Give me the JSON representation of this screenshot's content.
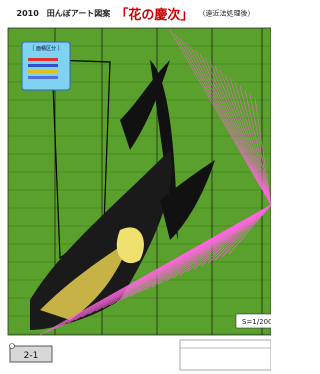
{
  "header": {
    "year": "2010　田んぼアート図案",
    "title": "「花の慶次」",
    "subtitle": "（遠近法処理後）"
  },
  "legend": {
    "title": "［ 面積区分 ］"
  },
  "scale": "S=1/200",
  "page_number": "2-1"
}
